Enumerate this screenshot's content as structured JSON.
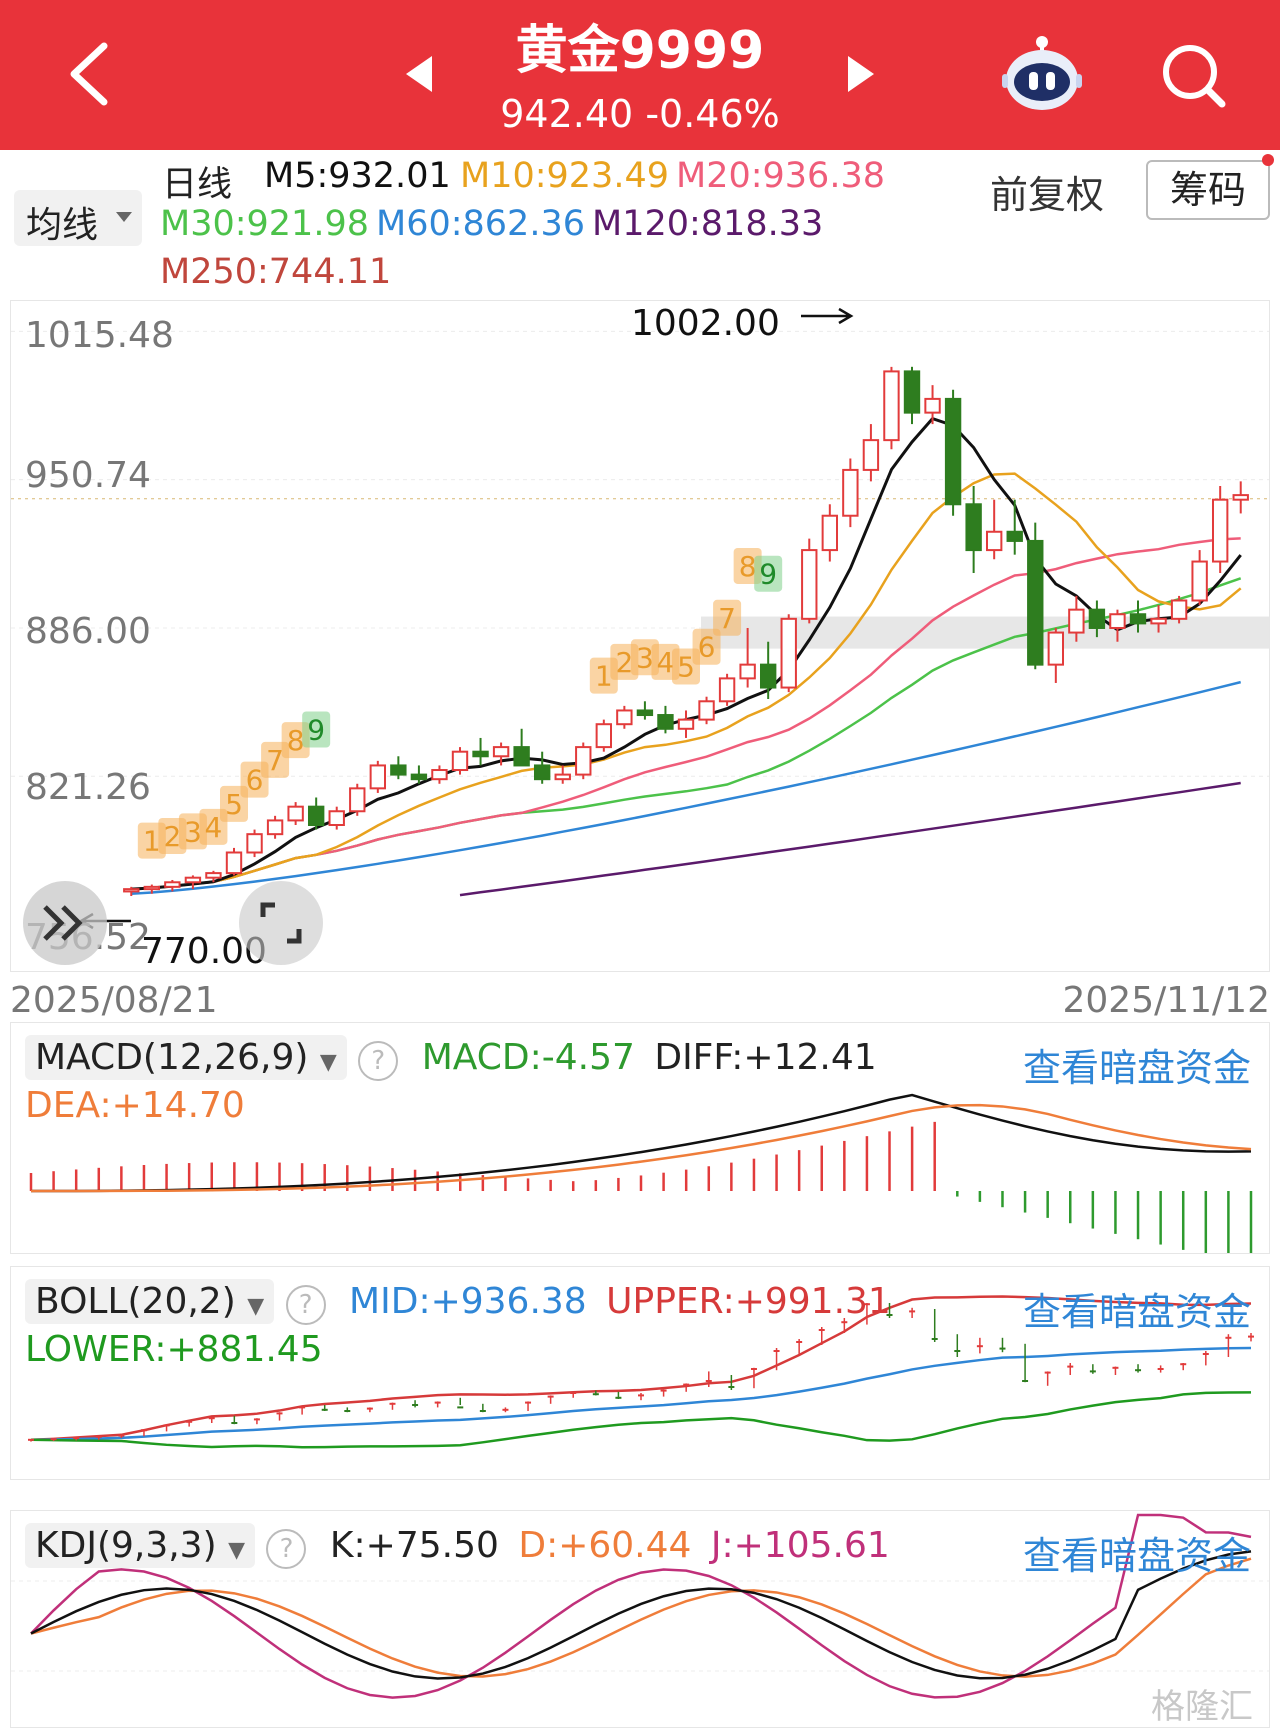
{
  "header": {
    "title": "黄金9999",
    "price": "942.40",
    "change": "-0.46%",
    "back_icon": "chevron-left-icon",
    "prev_icon": "triangle-left-icon",
    "next_icon": "triangle-right-icon",
    "robot_icon": "robot-assistant-icon",
    "search_icon": "search-icon"
  },
  "toolbar": {
    "ma_selector": "均线",
    "period": "日线",
    "adjust": "前复权",
    "chips_button": "筹码"
  },
  "ma_legend": {
    "m5": "M5:932.01",
    "m10": "M10:923.49",
    "m20": "M20:936.38",
    "m30": "M30:921.98",
    "m60": "M60:862.36",
    "m120": "M120:818.33",
    "m250": "M250:744.11"
  },
  "colors": {
    "brand_red": "#e8333a",
    "up": "#e23b3b",
    "down": "#2e7d1f",
    "m5": "#111111",
    "m10": "#e8a21e",
    "m20": "#ef5d7a",
    "m30": "#4cc24a",
    "m60": "#2f86d6",
    "m120": "#5b1a6b",
    "m250": "#c0463c",
    "nine_turn": "#f5b15a"
  },
  "main_chart": {
    "y_ticks": [
      "1015.48",
      "950.74",
      "886.00",
      "821.26",
      "756.52"
    ],
    "high_label": "1002.00",
    "low_label": "770.00",
    "date_start": "2025/08/21",
    "date_end": "2025/11/12",
    "nine_seq_a": [
      "1",
      "2",
      "3",
      "4",
      "5",
      "6",
      "7",
      "8",
      "9"
    ],
    "nine_seq_b": [
      "1",
      "2",
      "3",
      "4",
      "5",
      "6",
      "7",
      "8",
      "9"
    ]
  },
  "macd": {
    "selector": "MACD(12,26,9)",
    "macd": "MACD:-4.57",
    "diff": "DIFF:+12.41",
    "dea": "DEA:+14.70",
    "link": "查看暗盘资金"
  },
  "boll": {
    "selector": "BOLL(20,2)",
    "mid": "MID:+936.38",
    "upper": "UPPER:+991.31",
    "lower": "LOWER:+881.45",
    "link": "查看暗盘资金"
  },
  "kdj": {
    "selector": "KDJ(9,3,3)",
    "k": "K:+75.50",
    "d": "D:+60.44",
    "j": "J:+105.61",
    "link": "查看暗盘资金"
  },
  "watermark": "格隆汇",
  "chart_data": {
    "type": "candlestick",
    "title": "黄金9999",
    "y_ticks": [
      1015.48,
      950.74,
      886.0,
      821.26,
      756.52
    ],
    "ylim": [
      745,
      1020
    ],
    "x_range": [
      "2025/08/21",
      "2025/11/12"
    ],
    "high": 1002.0,
    "low": 770.0,
    "candles_ohlc": [
      [
        771,
        773,
        769,
        772
      ],
      [
        772,
        774,
        770,
        773
      ],
      [
        773,
        776,
        771,
        775
      ],
      [
        775,
        778,
        772,
        777
      ],
      [
        777,
        780,
        775,
        779
      ],
      [
        779,
        790,
        778,
        788
      ],
      [
        788,
        798,
        786,
        796
      ],
      [
        796,
        804,
        794,
        802
      ],
      [
        802,
        810,
        800,
        808
      ],
      [
        808,
        812,
        798,
        800
      ],
      [
        800,
        808,
        798,
        806
      ],
      [
        806,
        818,
        804,
        816
      ],
      [
        816,
        828,
        814,
        826
      ],
      [
        826,
        830,
        820,
        822
      ],
      [
        822,
        826,
        818,
        820
      ],
      [
        820,
        826,
        818,
        824
      ],
      [
        824,
        834,
        822,
        832
      ],
      [
        832,
        838,
        826,
        830
      ],
      [
        830,
        836,
        826,
        834
      ],
      [
        834,
        842,
        830,
        826
      ],
      [
        826,
        832,
        818,
        820
      ],
      [
        820,
        826,
        818,
        822
      ],
      [
        822,
        836,
        820,
        834
      ],
      [
        834,
        846,
        832,
        844
      ],
      [
        844,
        852,
        842,
        850
      ],
      [
        850,
        854,
        846,
        848
      ],
      [
        848,
        852,
        840,
        842
      ],
      [
        842,
        850,
        838,
        846
      ],
      [
        846,
        856,
        844,
        854
      ],
      [
        854,
        866,
        852,
        864
      ],
      [
        864,
        886,
        860,
        870
      ],
      [
        870,
        880,
        855,
        860
      ],
      [
        860,
        892,
        858,
        890
      ],
      [
        890,
        925,
        888,
        920
      ],
      [
        920,
        940,
        915,
        935
      ],
      [
        935,
        960,
        930,
        955
      ],
      [
        955,
        975,
        950,
        968
      ],
      [
        968,
        1000,
        964,
        998
      ],
      [
        998,
        1000,
        975,
        980
      ],
      [
        980,
        992,
        975,
        986
      ],
      [
        986,
        990,
        935,
        940
      ],
      [
        940,
        948,
        910,
        920
      ],
      [
        920,
        942,
        916,
        928
      ],
      [
        928,
        942,
        918,
        924
      ],
      [
        924,
        932,
        868,
        870
      ],
      [
        870,
        886,
        862,
        884
      ],
      [
        884,
        900,
        880,
        894
      ],
      [
        894,
        898,
        882,
        886
      ],
      [
        886,
        894,
        880,
        892
      ],
      [
        892,
        898,
        884,
        888
      ],
      [
        888,
        896,
        884,
        890
      ],
      [
        890,
        900,
        888,
        898
      ],
      [
        898,
        920,
        896,
        915
      ],
      [
        915,
        948,
        910,
        942
      ],
      [
        942,
        950,
        936,
        944
      ]
    ],
    "ma_last": {
      "M5": 932.01,
      "M10": 923.49,
      "M20": 936.38,
      "M30": 921.98,
      "M60": 862.36,
      "M120": 818.33,
      "M250": 744.11
    },
    "indicators": {
      "MACD": {
        "MACD": -4.57,
        "DIFF": 12.41,
        "DEA": 14.7
      },
      "BOLL": {
        "MID": 936.38,
        "UPPER": 991.31,
        "LOWER": 881.45
      },
      "KDJ": {
        "K": 75.5,
        "D": 60.44,
        "J": 105.61
      }
    }
  }
}
